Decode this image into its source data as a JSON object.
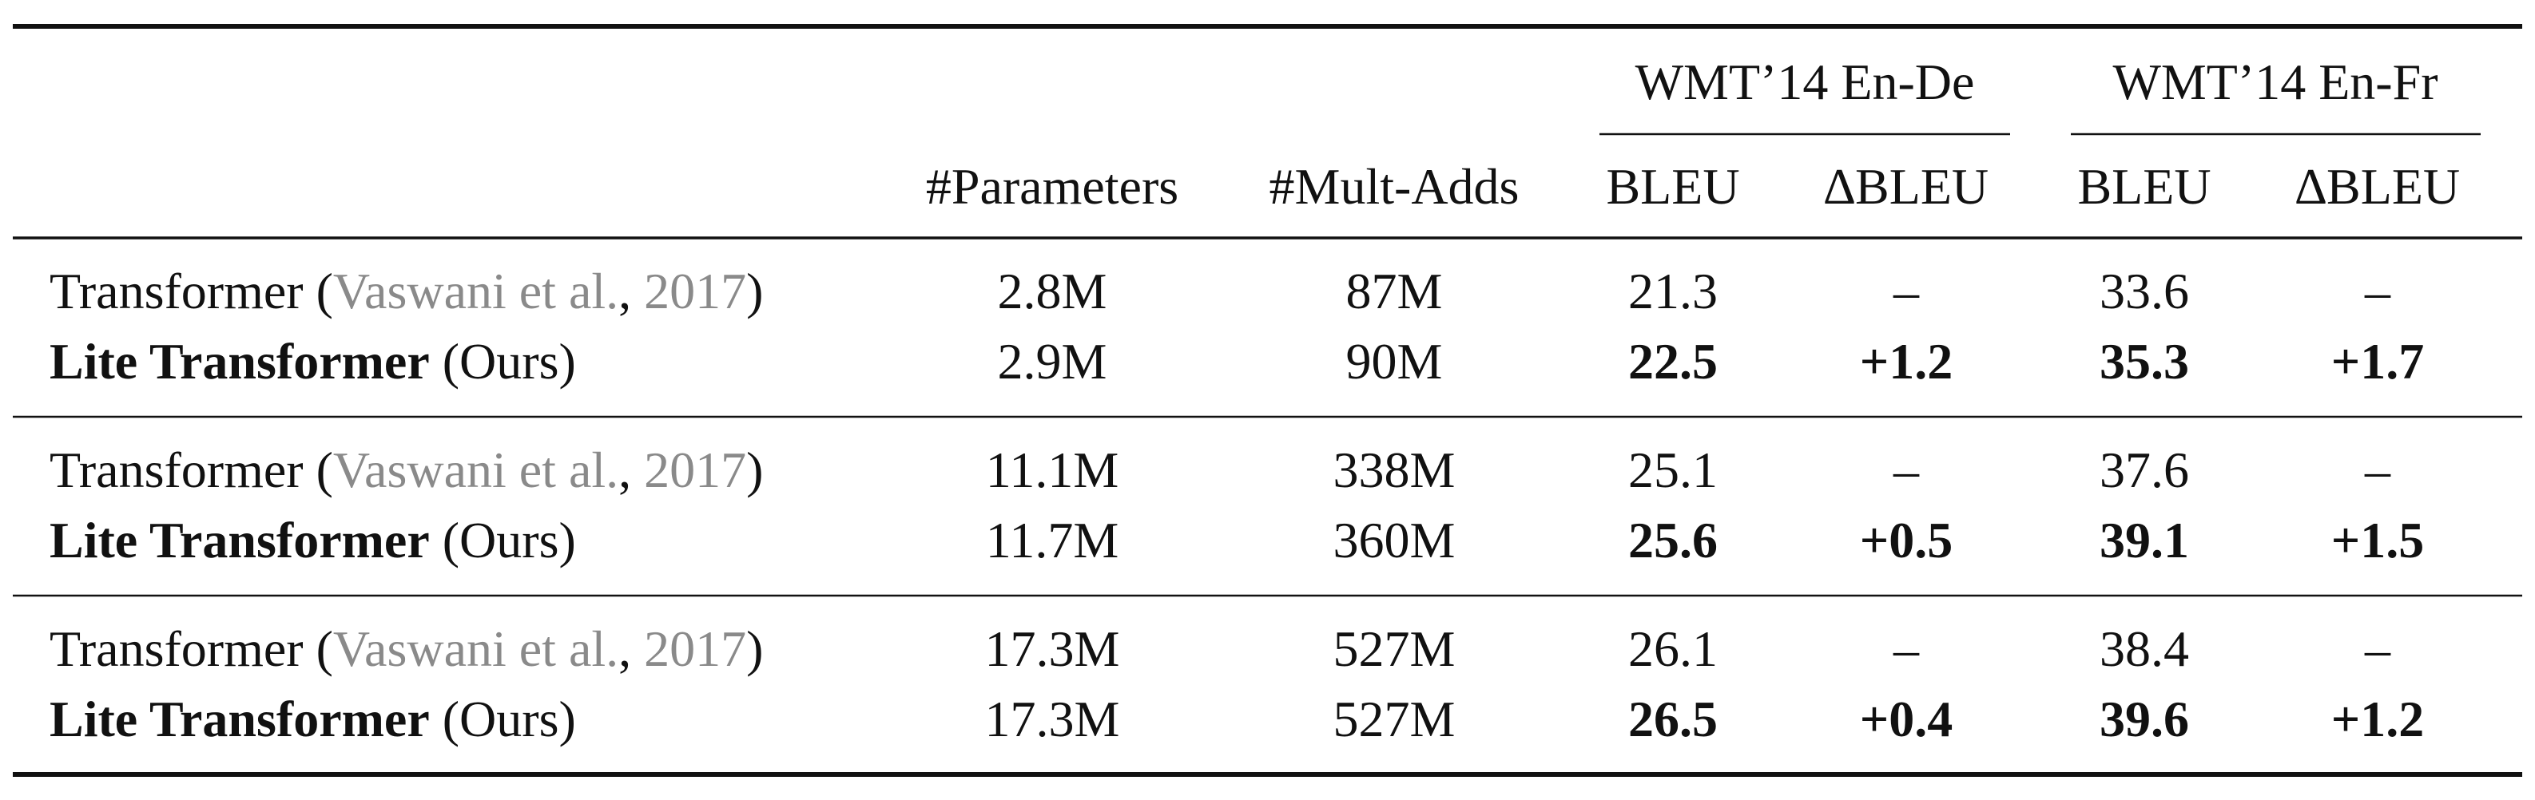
{
  "table": {
    "group_headers": {
      "en_de": "WMT’14 En-De",
      "en_fr": "WMT’14 En-Fr"
    },
    "column_headers": {
      "params": "#Parameters",
      "mult_adds": "#Mult-Adds",
      "bleu_de": "BLEU",
      "dbleu_de": "∆BLEU",
      "bleu_fr": "BLEU",
      "dbleu_fr": "∆BLEU"
    },
    "rows": [
      {
        "model": "Transformer",
        "open": " (",
        "cite_authors": "Vaswani et al.",
        "comma": ", ",
        "cite_year": "2017",
        "close": ")",
        "params": "2.8M",
        "mult_adds": "87M",
        "bleu_de": "21.3",
        "dbleu_de": "–",
        "bleu_fr": "33.6",
        "dbleu_fr": "–"
      },
      {
        "model": "Lite Transformer",
        "suffix": " (Ours)",
        "params": "2.9M",
        "mult_adds": "90M",
        "bleu_de": "22.5",
        "dbleu_de": "+1.2",
        "bleu_fr": "35.3",
        "dbleu_fr": "+1.7"
      },
      {
        "model": "Transformer",
        "open": " (",
        "cite_authors": "Vaswani et al.",
        "comma": ", ",
        "cite_year": "2017",
        "close": ")",
        "params": "11.1M",
        "mult_adds": "338M",
        "bleu_de": "25.1",
        "dbleu_de": "–",
        "bleu_fr": "37.6",
        "dbleu_fr": "–"
      },
      {
        "model": "Lite Transformer",
        "suffix": " (Ours)",
        "params": "11.7M",
        "mult_adds": "360M",
        "bleu_de": "25.6",
        "dbleu_de": "+0.5",
        "bleu_fr": "39.1",
        "dbleu_fr": "+1.5"
      },
      {
        "model": "Transformer",
        "open": " (",
        "cite_authors": "Vaswani et al.",
        "comma": ", ",
        "cite_year": "2017",
        "close": ")",
        "params": "17.3M",
        "mult_adds": "527M",
        "bleu_de": "26.1",
        "dbleu_de": "–",
        "bleu_fr": "38.4",
        "dbleu_fr": "–"
      },
      {
        "model": "Lite Transformer",
        "suffix": " (Ours)",
        "params": "17.3M",
        "mult_adds": "527M",
        "bleu_de": "26.5",
        "dbleu_de": "+0.4",
        "bleu_fr": "39.6",
        "dbleu_fr": "+1.2"
      }
    ]
  }
}
